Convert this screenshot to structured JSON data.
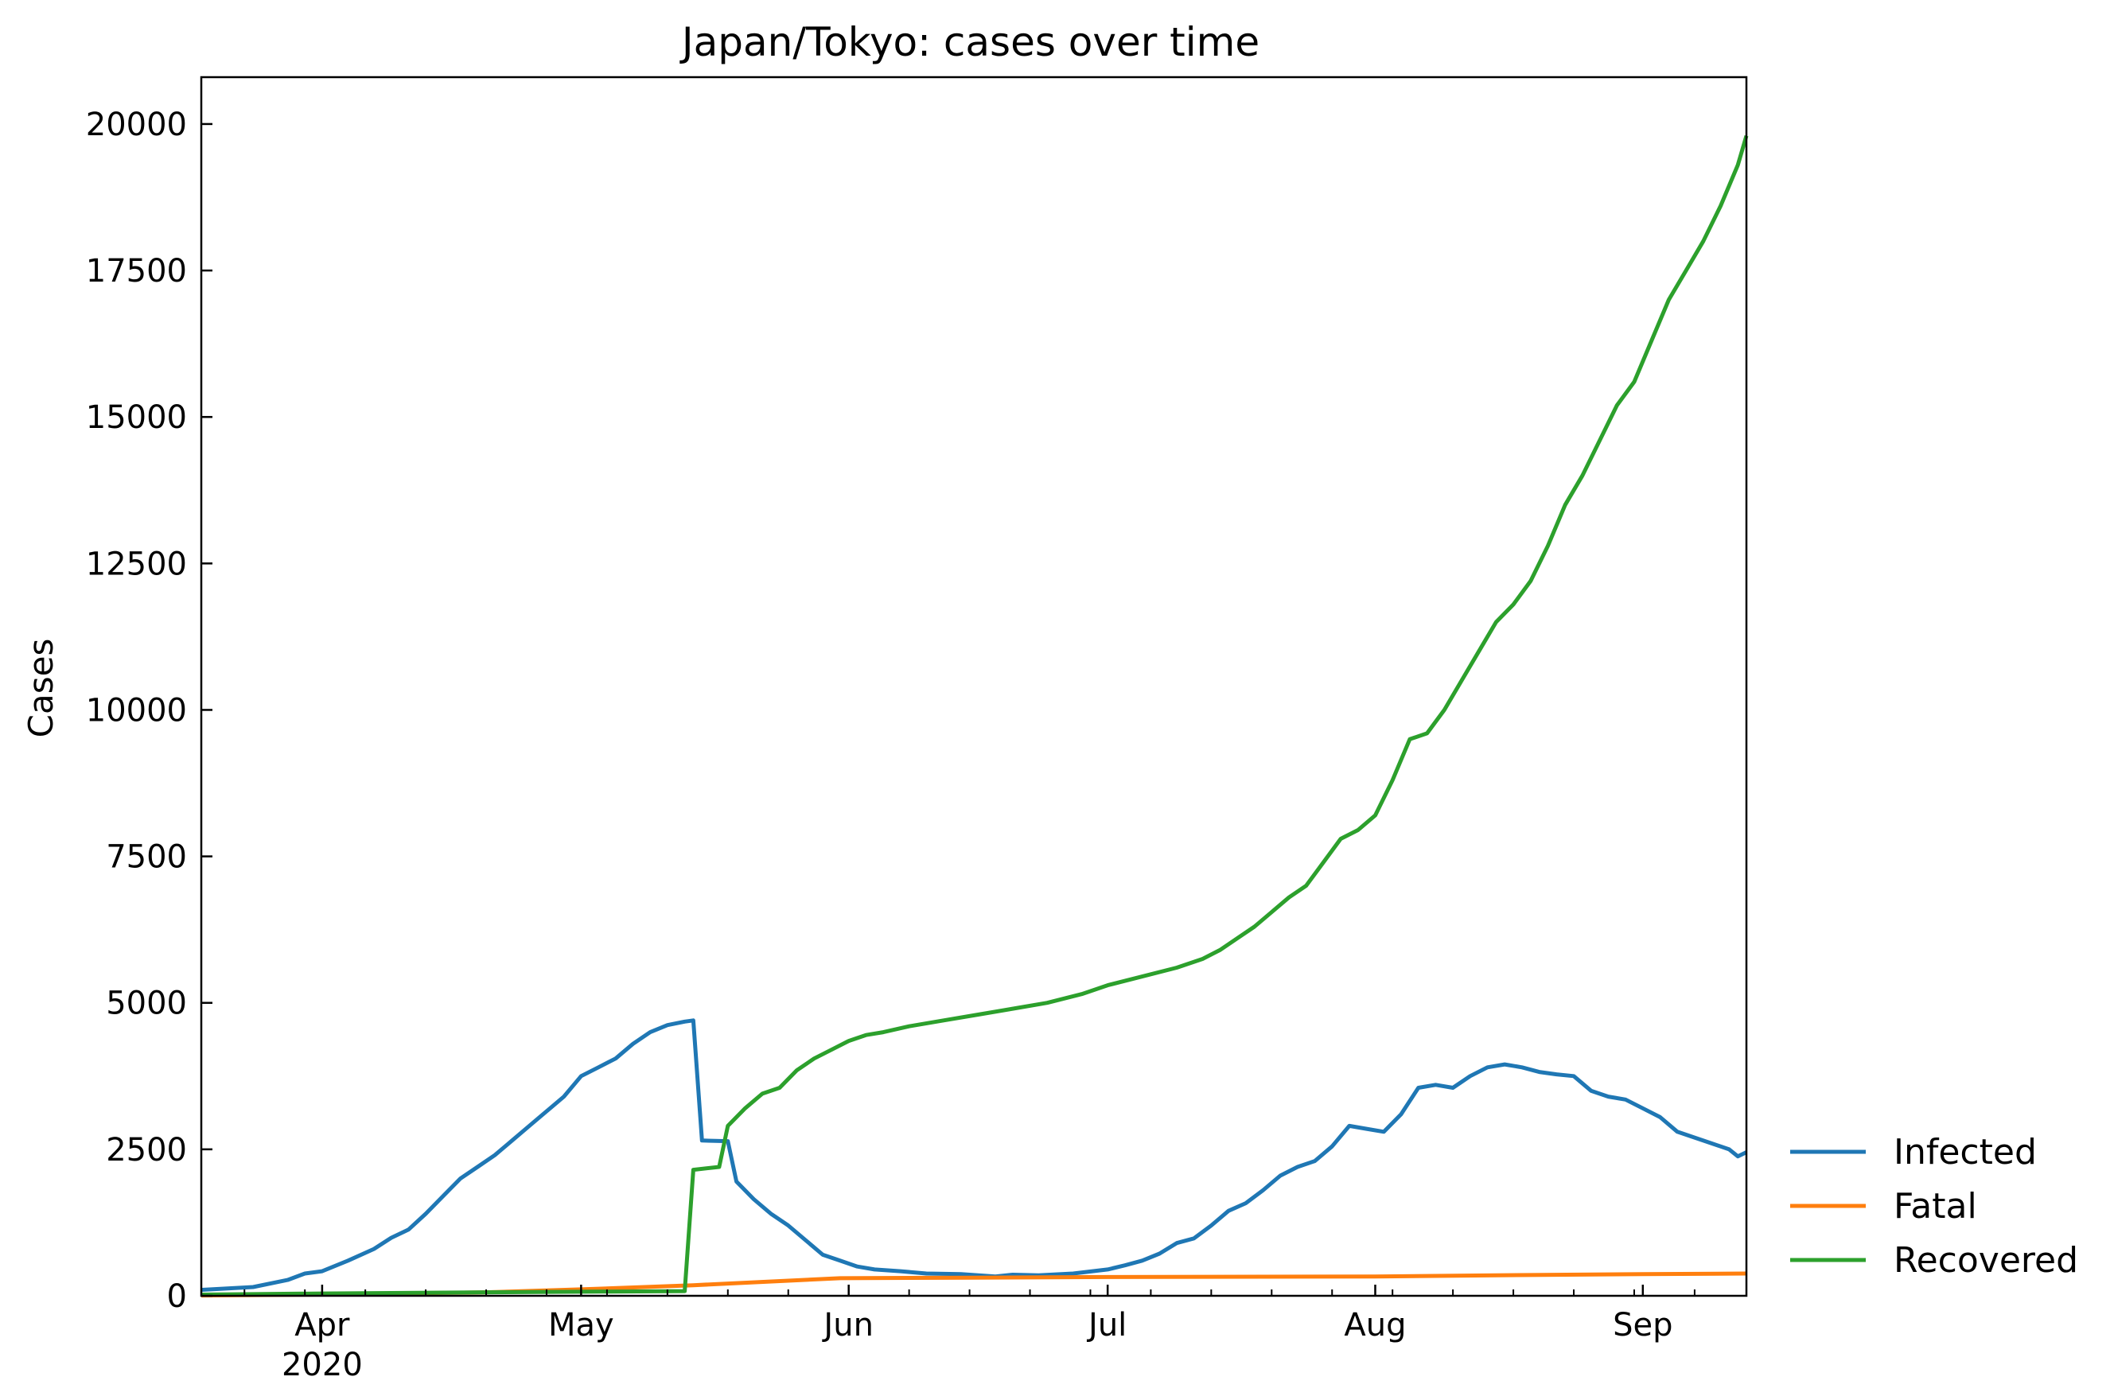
{
  "chart_data": {
    "type": "line",
    "title": "Japan/Tokyo: cases over time",
    "xlabel": "",
    "ylabel": "Cases",
    "xlim": [
      "2020-03-18",
      "2020-09-13"
    ],
    "ylim": [
      0,
      20800
    ],
    "grid": false,
    "legend_position": "outside-right-bottom",
    "x_ticks": [
      {
        "date": "2020-04-01",
        "label": "Apr",
        "sublabel": "2020"
      },
      {
        "date": "2020-05-01",
        "label": "May",
        "sublabel": ""
      },
      {
        "date": "2020-06-01",
        "label": "Jun",
        "sublabel": ""
      },
      {
        "date": "2020-07-01",
        "label": "Jul",
        "sublabel": ""
      },
      {
        "date": "2020-08-01",
        "label": "Aug",
        "sublabel": ""
      },
      {
        "date": "2020-09-01",
        "label": "Sep",
        "sublabel": ""
      }
    ],
    "y_ticks": [
      {
        "value": 0,
        "label": "0"
      },
      {
        "value": 2500,
        "label": "2500"
      },
      {
        "value": 5000,
        "label": "5000"
      },
      {
        "value": 7500,
        "label": "7500"
      },
      {
        "value": 10000,
        "label": "10000"
      },
      {
        "value": 12500,
        "label": "12500"
      },
      {
        "value": 15000,
        "label": "15000"
      },
      {
        "value": 17500,
        "label": "17500"
      },
      {
        "value": 20000,
        "label": "20000"
      }
    ],
    "series": [
      {
        "name": "Infected",
        "color": "#1f77b4",
        "points": [
          [
            "2020-03-18",
            100
          ],
          [
            "2020-03-24",
            150
          ],
          [
            "2020-03-28",
            270
          ],
          [
            "2020-03-30",
            380
          ],
          [
            "2020-04-01",
            420
          ],
          [
            "2020-04-04",
            600
          ],
          [
            "2020-04-07",
            800
          ],
          [
            "2020-04-09",
            990
          ],
          [
            "2020-04-11",
            1130
          ],
          [
            "2020-04-13",
            1400
          ],
          [
            "2020-04-15",
            1700
          ],
          [
            "2020-04-17",
            2000
          ],
          [
            "2020-04-19",
            2200
          ],
          [
            "2020-04-21",
            2400
          ],
          [
            "2020-04-23",
            2650
          ],
          [
            "2020-04-25",
            2900
          ],
          [
            "2020-04-27",
            3150
          ],
          [
            "2020-04-29",
            3400
          ],
          [
            "2020-05-01",
            3750
          ],
          [
            "2020-05-03",
            3900
          ],
          [
            "2020-05-05",
            4050
          ],
          [
            "2020-05-07",
            4300
          ],
          [
            "2020-05-09",
            4500
          ],
          [
            "2020-05-11",
            4620
          ],
          [
            "2020-05-13",
            4680
          ],
          [
            "2020-05-14",
            4700
          ],
          [
            "2020-05-15",
            2650
          ],
          [
            "2020-05-18",
            2640
          ],
          [
            "2020-05-19",
            1950
          ],
          [
            "2020-05-21",
            1650
          ],
          [
            "2020-05-23",
            1400
          ],
          [
            "2020-05-25",
            1200
          ],
          [
            "2020-05-27",
            950
          ],
          [
            "2020-05-29",
            700
          ],
          [
            "2020-05-31",
            600
          ],
          [
            "2020-06-02",
            500
          ],
          [
            "2020-06-04",
            450
          ],
          [
            "2020-06-07",
            420
          ],
          [
            "2020-06-10",
            380
          ],
          [
            "2020-06-14",
            370
          ],
          [
            "2020-06-18",
            330
          ],
          [
            "2020-06-20",
            360
          ],
          [
            "2020-06-23",
            350
          ],
          [
            "2020-06-27",
            380
          ],
          [
            "2020-07-01",
            450
          ],
          [
            "2020-07-03",
            520
          ],
          [
            "2020-07-05",
            600
          ],
          [
            "2020-07-07",
            720
          ],
          [
            "2020-07-09",
            900
          ],
          [
            "2020-07-11",
            980
          ],
          [
            "2020-07-13",
            1200
          ],
          [
            "2020-07-15",
            1450
          ],
          [
            "2020-07-17",
            1580
          ],
          [
            "2020-07-19",
            1800
          ],
          [
            "2020-07-21",
            2050
          ],
          [
            "2020-07-23",
            2200
          ],
          [
            "2020-07-25",
            2300
          ],
          [
            "2020-07-27",
            2550
          ],
          [
            "2020-07-29",
            2900
          ],
          [
            "2020-07-31",
            2850
          ],
          [
            "2020-08-02",
            2800
          ],
          [
            "2020-08-04",
            3100
          ],
          [
            "2020-08-06",
            3550
          ],
          [
            "2020-08-08",
            3600
          ],
          [
            "2020-08-10",
            3550
          ],
          [
            "2020-08-12",
            3750
          ],
          [
            "2020-08-14",
            3900
          ],
          [
            "2020-08-16",
            3950
          ],
          [
            "2020-08-18",
            3900
          ],
          [
            "2020-08-20",
            3820
          ],
          [
            "2020-08-22",
            3780
          ],
          [
            "2020-08-24",
            3750
          ],
          [
            "2020-08-26",
            3500
          ],
          [
            "2020-08-28",
            3400
          ],
          [
            "2020-08-30",
            3350
          ],
          [
            "2020-09-01",
            3200
          ],
          [
            "2020-09-03",
            3050
          ],
          [
            "2020-09-05",
            2800
          ],
          [
            "2020-09-07",
            2700
          ],
          [
            "2020-09-09",
            2600
          ],
          [
            "2020-09-11",
            2500
          ],
          [
            "2020-09-12",
            2380
          ],
          [
            "2020-09-13",
            2450
          ]
        ]
      },
      {
        "name": "Fatal",
        "color": "#ff7f0e",
        "points": [
          [
            "2020-03-18",
            5
          ],
          [
            "2020-04-01",
            20
          ],
          [
            "2020-04-20",
            60
          ],
          [
            "2020-05-01",
            110
          ],
          [
            "2020-05-14",
            180
          ],
          [
            "2020-05-31",
            300
          ],
          [
            "2020-06-15",
            310
          ],
          [
            "2020-07-01",
            320
          ],
          [
            "2020-08-01",
            330
          ],
          [
            "2020-08-15",
            350
          ],
          [
            "2020-09-01",
            370
          ],
          [
            "2020-09-13",
            380
          ]
        ]
      },
      {
        "name": "Recovered",
        "color": "#2ca02c",
        "points": [
          [
            "2020-03-18",
            20
          ],
          [
            "2020-04-01",
            40
          ],
          [
            "2020-04-20",
            60
          ],
          [
            "2020-05-13",
            80
          ],
          [
            "2020-05-14",
            2150
          ],
          [
            "2020-05-17",
            2200
          ],
          [
            "2020-05-18",
            2900
          ],
          [
            "2020-05-20",
            3200
          ],
          [
            "2020-05-22",
            3450
          ],
          [
            "2020-05-24",
            3550
          ],
          [
            "2020-05-26",
            3850
          ],
          [
            "2020-05-28",
            4050
          ],
          [
            "2020-05-30",
            4200
          ],
          [
            "2020-06-01",
            4350
          ],
          [
            "2020-06-03",
            4450
          ],
          [
            "2020-06-05",
            4500
          ],
          [
            "2020-06-08",
            4600
          ],
          [
            "2020-06-12",
            4700
          ],
          [
            "2020-06-16",
            4800
          ],
          [
            "2020-06-20",
            4900
          ],
          [
            "2020-06-24",
            5000
          ],
          [
            "2020-06-28",
            5150
          ],
          [
            "2020-07-01",
            5300
          ],
          [
            "2020-07-05",
            5450
          ],
          [
            "2020-07-09",
            5600
          ],
          [
            "2020-07-12",
            5750
          ],
          [
            "2020-07-14",
            5900
          ],
          [
            "2020-07-16",
            6100
          ],
          [
            "2020-07-18",
            6300
          ],
          [
            "2020-07-20",
            6550
          ],
          [
            "2020-07-22",
            6800
          ],
          [
            "2020-07-24",
            7000
          ],
          [
            "2020-07-26",
            7400
          ],
          [
            "2020-07-28",
            7800
          ],
          [
            "2020-07-30",
            7950
          ],
          [
            "2020-08-01",
            8200
          ],
          [
            "2020-08-03",
            8800
          ],
          [
            "2020-08-05",
            9500
          ],
          [
            "2020-08-07",
            9600
          ],
          [
            "2020-08-09",
            10000
          ],
          [
            "2020-08-11",
            10500
          ],
          [
            "2020-08-13",
            11000
          ],
          [
            "2020-08-15",
            11500
          ],
          [
            "2020-08-17",
            11800
          ],
          [
            "2020-08-19",
            12200
          ],
          [
            "2020-08-21",
            12800
          ],
          [
            "2020-08-23",
            13500
          ],
          [
            "2020-08-25",
            14000
          ],
          [
            "2020-08-27",
            14600
          ],
          [
            "2020-08-29",
            15200
          ],
          [
            "2020-08-31",
            15600
          ],
          [
            "2020-09-02",
            16300
          ],
          [
            "2020-09-04",
            17000
          ],
          [
            "2020-09-06",
            17500
          ],
          [
            "2020-09-08",
            18000
          ],
          [
            "2020-09-10",
            18600
          ],
          [
            "2020-09-12",
            19300
          ],
          [
            "2020-09-13",
            19800
          ]
        ]
      }
    ]
  }
}
